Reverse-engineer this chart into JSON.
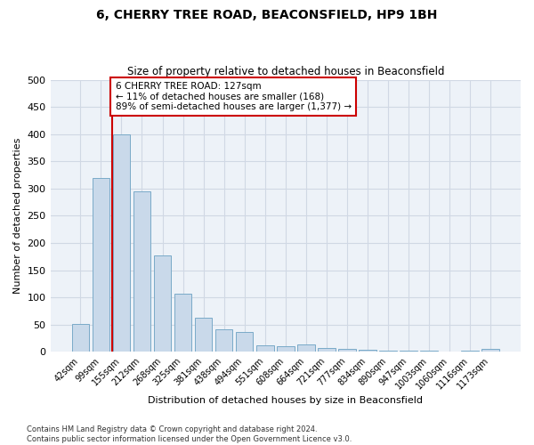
{
  "title": "6, CHERRY TREE ROAD, BEACONSFIELD, HP9 1BH",
  "subtitle": "Size of property relative to detached houses in Beaconsfield",
  "xlabel": "Distribution of detached houses by size in Beaconsfield",
  "ylabel": "Number of detached properties",
  "categories": [
    "42sqm",
    "99sqm",
    "155sqm",
    "212sqm",
    "268sqm",
    "325sqm",
    "381sqm",
    "438sqm",
    "494sqm",
    "551sqm",
    "608sqm",
    "664sqm",
    "721sqm",
    "777sqm",
    "834sqm",
    "890sqm",
    "947sqm",
    "1003sqm",
    "1060sqm",
    "1116sqm",
    "1173sqm"
  ],
  "values": [
    52,
    320,
    400,
    295,
    178,
    107,
    63,
    42,
    37,
    12,
    10,
    13,
    8,
    6,
    4,
    3,
    2,
    2,
    1,
    2,
    5
  ],
  "bar_color": "#c9d9ea",
  "bar_edge_color": "#7aaac8",
  "grid_color": "#d0d8e4",
  "bg_color": "#edf2f8",
  "annotation_box_color": "#ffffff",
  "annotation_border_color": "#cc0000",
  "vline_color": "#cc0000",
  "vline_x": 1.55,
  "annotation_text_line1": "6 CHERRY TREE ROAD: 127sqm",
  "annotation_text_line2": "← 11% of detached houses are smaller (168)",
  "annotation_text_line3": "89% of semi-detached houses are larger (1,377) →",
  "footer_line1": "Contains HM Land Registry data © Crown copyright and database right 2024.",
  "footer_line2": "Contains public sector information licensed under the Open Government Licence v3.0.",
  "ylim": [
    0,
    500
  ],
  "yticks": [
    0,
    50,
    100,
    150,
    200,
    250,
    300,
    350,
    400,
    450,
    500
  ]
}
